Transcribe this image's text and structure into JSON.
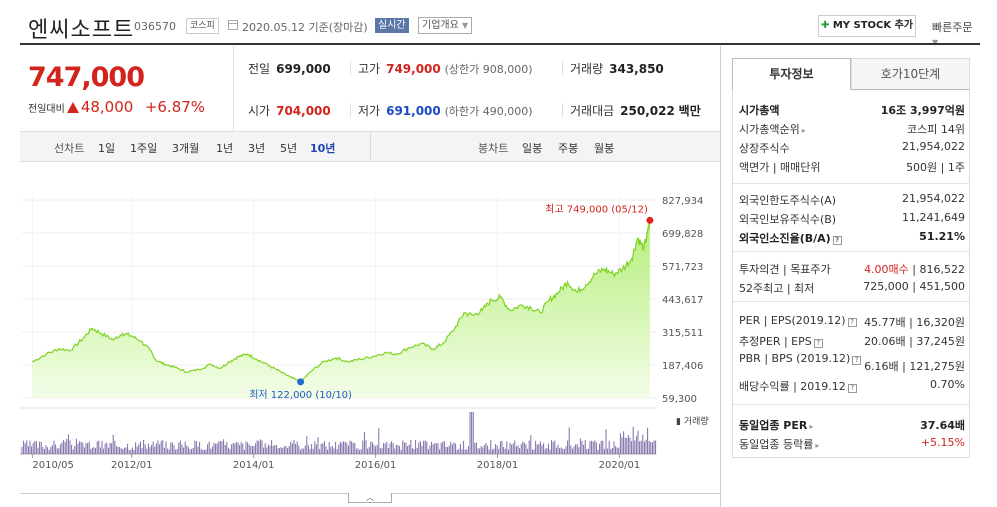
{
  "header": {
    "name": "엔씨소프트",
    "code": "036570",
    "market": "코스피",
    "date": "2020.05.12 기준(장마감)",
    "realtime": "실시간",
    "company_select": "기업개요",
    "my_stock": "MY STOCK 추가",
    "quick_order": "빠른주문"
  },
  "price": {
    "current": "747,000",
    "change_label": "전일대비",
    "change": "48,000",
    "change_pct": "+6.87%"
  },
  "stats": {
    "prev_label": "전일",
    "prev": "699,000",
    "high_label": "고가",
    "high": "749,000",
    "upper_limit": "(상한가 908,000)",
    "vol_label": "거래량",
    "vol": "343,850",
    "open_label": "시가",
    "open": "704,000",
    "low_label": "저가",
    "low": "691,000",
    "lower_limit": "(하한가 490,000)",
    "amt_label": "거래대금",
    "amt": "250,022",
    "amt_unit": "백만"
  },
  "chart_tabs": {
    "line_chart": "선차트",
    "periods": [
      "1일",
      "1주일",
      "3개월",
      "1년",
      "3년",
      "5년",
      "10년"
    ],
    "active_period": "10년",
    "candle_chart": "봉차트",
    "candle_periods": [
      "일봉",
      "주봉",
      "월봉"
    ]
  },
  "chart_data": {
    "type": "area",
    "x_ticks": [
      "2010/05",
      "2012/01",
      "2014/01",
      "2016/01",
      "2018/01",
      "2020/01"
    ],
    "y_ticks": [
      "827,934",
      "699,828",
      "571,723",
      "443,617",
      "315,511",
      "187,406",
      "59,300"
    ],
    "ylim": [
      59300,
      827934
    ],
    "high_annotation": "최고 749,000 (05/12)",
    "low_annotation": "최저 122,000 (10/10)",
    "volume_label": "거래량",
    "series": [
      {
        "values": [
          [
            2010.37,
            200000
          ],
          [
            2010.6,
            230000
          ],
          [
            2010.8,
            250000
          ],
          [
            2011.0,
            245000
          ],
          [
            2011.2,
            290000
          ],
          [
            2011.35,
            330000
          ],
          [
            2011.5,
            310000
          ],
          [
            2011.7,
            285000
          ],
          [
            2011.85,
            310000
          ],
          [
            2012.0,
            300000
          ],
          [
            2012.15,
            280000
          ],
          [
            2012.3,
            245000
          ],
          [
            2012.4,
            205000
          ],
          [
            2012.55,
            190000
          ],
          [
            2012.75,
            175000
          ],
          [
            2012.9,
            160000
          ],
          [
            2013.1,
            170000
          ],
          [
            2013.3,
            190000
          ],
          [
            2013.45,
            175000
          ],
          [
            2013.6,
            200000
          ],
          [
            2013.75,
            220000
          ],
          [
            2013.9,
            230000
          ],
          [
            2014.05,
            210000
          ],
          [
            2014.25,
            185000
          ],
          [
            2014.45,
            160000
          ],
          [
            2014.6,
            140000
          ],
          [
            2014.77,
            122000
          ],
          [
            2014.95,
            165000
          ],
          [
            2015.15,
            200000
          ],
          [
            2015.35,
            215000
          ],
          [
            2015.55,
            200000
          ],
          [
            2015.75,
            210000
          ],
          [
            2015.95,
            220000
          ],
          [
            2016.15,
            235000
          ],
          [
            2016.35,
            230000
          ],
          [
            2016.55,
            255000
          ],
          [
            2016.75,
            270000
          ],
          [
            2016.95,
            250000
          ],
          [
            2017.1,
            270000
          ],
          [
            2017.3,
            330000
          ],
          [
            2017.45,
            390000
          ],
          [
            2017.6,
            380000
          ],
          [
            2017.75,
            400000
          ],
          [
            2017.9,
            440000
          ],
          [
            2018.05,
            450000
          ],
          [
            2018.2,
            400000
          ],
          [
            2018.4,
            420000
          ],
          [
            2018.55,
            410000
          ],
          [
            2018.7,
            390000
          ],
          [
            2018.85,
            440000
          ],
          [
            2019.0,
            470000
          ],
          [
            2019.15,
            510000
          ],
          [
            2019.3,
            470000
          ],
          [
            2019.45,
            500000
          ],
          [
            2019.6,
            540000
          ],
          [
            2019.75,
            560000
          ],
          [
            2019.9,
            540000
          ],
          [
            2020.05,
            560000
          ],
          [
            2020.2,
            600000
          ],
          [
            2020.3,
            680000
          ],
          [
            2020.4,
            640000
          ],
          [
            2020.46,
            699000
          ],
          [
            2020.5,
            749000
          ]
        ]
      }
    ]
  },
  "info": {
    "tab_invest": "투자정보",
    "tab_order": "호가10단계",
    "market_cap_label": "시가총액",
    "market_cap": "16조 3,997억원",
    "market_cap_rank_label": "시가총액순위",
    "market_cap_rank": "코스피 14위",
    "shares_label": "상장주식수",
    "shares": "21,954,022",
    "par_label": "액면가 | 매매단위",
    "par": "500원 | 1주",
    "foreign_limit_label": "외국인한도주식수(A)",
    "foreign_limit": "21,954,022",
    "foreign_hold_label": "외국인보유주식수(B)",
    "foreign_hold": "11,241,649",
    "foreign_ratio_label": "외국인소진율(B/A)",
    "foreign_ratio": "51.21%",
    "opinion_label": "투자의견 | 목표주가",
    "opinion": "4.00매수",
    "target": "816,522",
    "w52_label": "52주최고 | 최저",
    "w52_high": "725,000",
    "w52_low": "451,500",
    "per_label": "PER | EPS(2019.12)",
    "per": "45.77배",
    "eps": "16,320원",
    "est_label": "추정PER | EPS",
    "est_per": "20.06배",
    "est_eps": "37,245원",
    "pbr_label": "PBR | BPS (2019.12)",
    "pbr": "6.16배",
    "bps": "121,275원",
    "div_label": "배당수익률 | 2019.12",
    "div": "0.70%",
    "ind_per_label": "동일업종 PER",
    "ind_per": "37.64배",
    "ind_chg_label": "동일업종 등락률",
    "ind_chg": "+5.15%"
  }
}
